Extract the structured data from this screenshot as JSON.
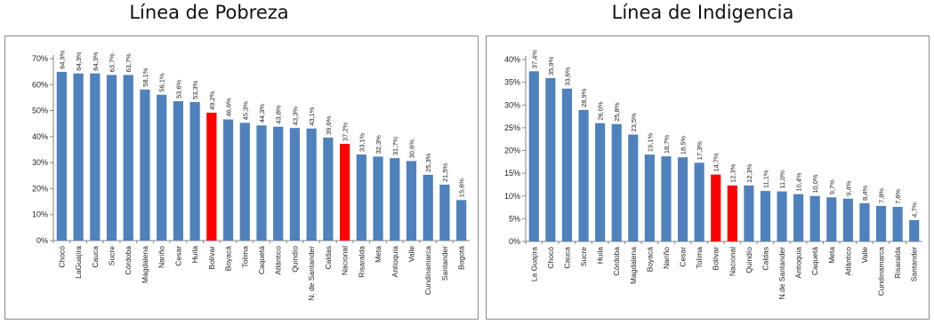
{
  "chart_data": [
    {
      "type": "bar",
      "title": "Línea de Pobreza",
      "categories": [
        "Chocó",
        "LaGuajira",
        "Cauca",
        "Sucre",
        "Córdoba",
        "Magdalena",
        "Nariño",
        "Cesar",
        "Huila",
        "Bolívar",
        "Boyacá",
        "Tolima",
        "Caquetá",
        "Atlántico",
        "Quindío",
        "N. de Santander",
        "Caldas",
        "Nacional",
        "Risaralda",
        "Meta",
        "Antioquia",
        "Valle",
        "Cundinamarca",
        "Santander",
        "Bogotá"
      ],
      "values": [
        64.9,
        64.3,
        64.3,
        63.7,
        63.7,
        58.1,
        56.1,
        53.6,
        53.3,
        49.2,
        46.6,
        45.3,
        44.3,
        43.8,
        43.3,
        43.1,
        39.6,
        37.2,
        33.1,
        32.3,
        31.7,
        30.6,
        25.3,
        21.5,
        15.6
      ],
      "value_labels": [
        "64,9%",
        "64,3%",
        "64,3%",
        "63,7%",
        "63,7%",
        "58,1%",
        "56,1%",
        "53,6%",
        "53,3%",
        "49,2%",
        "46,6%",
        "45,3%",
        "44,3%",
        "43,8%",
        "43,3%",
        "43,1%",
        "39,6%",
        "37,2%",
        "33,1%",
        "32,3%",
        "31,7%",
        "30,6%",
        "25,3%",
        "21,5%",
        "15,6%"
      ],
      "highlight": [
        "Bolívar",
        "Nacional"
      ],
      "ylim": [
        0,
        70
      ],
      "yticks": [
        "0%",
        "10%",
        "20%",
        "30%",
        "40%",
        "50%",
        "60%",
        "70%"
      ],
      "grid": false,
      "colors": {
        "bar": "#4f81bd",
        "highlight": "#ff0000"
      }
    },
    {
      "type": "bar",
      "title": "Línea de Indigencia",
      "categories": [
        "La Guajira",
        "Chocó",
        "Cauca",
        "Sucre",
        "Huila",
        "Córdoba",
        "Magdalena",
        "Boyacá",
        "Nariño",
        "Cesar",
        "Tolima",
        "Bolívar",
        "Nacional",
        "Quindío",
        "Caldas",
        "N.de Santander",
        "Antioquia",
        "Caquetá",
        "Meta",
        "Atlántico",
        "Valle",
        "Cundinamarca",
        "Risaralda",
        "Santander"
      ],
      "values": [
        37.4,
        35.9,
        33.6,
        28.9,
        26.0,
        25.8,
        23.5,
        19.1,
        18.7,
        18.5,
        17.3,
        14.7,
        12.3,
        12.3,
        11.1,
        11.0,
        10.4,
        10.0,
        9.7,
        9.4,
        8.4,
        7.8,
        7.6,
        4.7
      ],
      "value_labels": [
        "37,4%",
        "35,9%",
        "33,6%",
        "28,9%",
        "26,0%",
        "25,8%",
        "23,5%",
        "19,1%",
        "18,7%",
        "18,5%",
        "17,3%",
        "14,7%",
        "12,3%",
        "12,3%",
        "11,1%",
        "11,0%",
        "10,4%",
        "10,0%",
        "9,7%",
        "9,4%",
        "8,4%",
        "7,8%",
        "7,6%",
        "4,7%"
      ],
      "highlight": [
        "Bolívar",
        "Nacional"
      ],
      "ylim": [
        0,
        40
      ],
      "yticks": [
        "0%",
        "5%",
        "10%",
        "15%",
        "20%",
        "25%",
        "30%",
        "35%",
        "40%"
      ],
      "grid": false,
      "colors": {
        "bar": "#4f81bd",
        "highlight": "#ff0000"
      }
    }
  ]
}
